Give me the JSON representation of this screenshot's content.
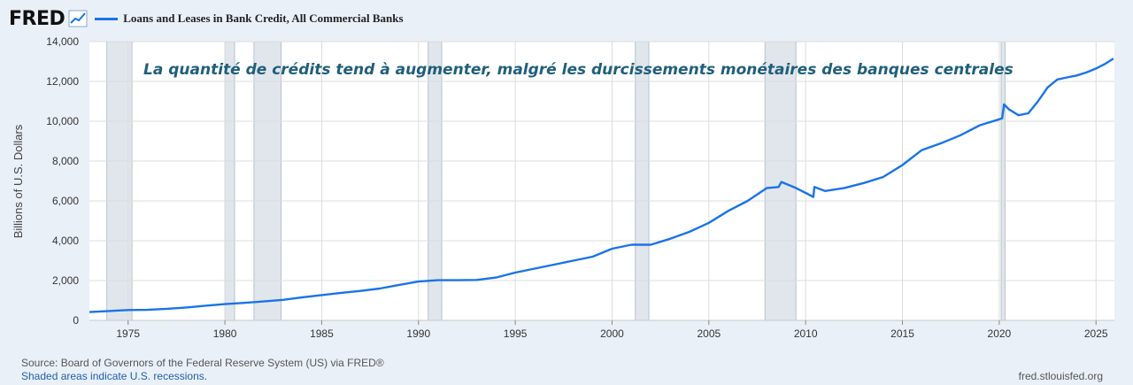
{
  "header": {
    "logo": "FRED",
    "legend_label": "Loans and Leases in Bank Credit, All Commercial Banks"
  },
  "footer": {
    "source": "Source: Board of Governors of the Federal Reserve System (US) via FRED®",
    "note": "Shaded areas indicate U.S. recessions.",
    "site": "fred.stlouisfed.org"
  },
  "colors": {
    "series": "#1a73e8",
    "annotation": "#1f5f7a",
    "recession": "#e1e6ec",
    "background": "#eaf0f8",
    "plot_bg": "#ffffff"
  },
  "chart_data": {
    "type": "line",
    "annotation": "La quantité de crédits tend à augmenter, malgré les durcissements monétaires des banques centrales",
    "ylabel": "Billions of U.S. Dollars",
    "xlabel": "",
    "xlim": [
      1973.0,
      2025.95
    ],
    "ylim": [
      0,
      14000
    ],
    "y_ticks": [
      0,
      2000,
      4000,
      6000,
      8000,
      10000,
      12000,
      14000
    ],
    "y_tick_labels": [
      "0",
      "2,000",
      "4,000",
      "6,000",
      "8,000",
      "10,000",
      "12,000",
      "14,000"
    ],
    "x_ticks": [
      1975,
      1980,
      1985,
      1990,
      1995,
      2000,
      2005,
      2010,
      2015,
      2020,
      2025
    ],
    "x_tick_labels": [
      "1975",
      "1980",
      "1985",
      "1990",
      "1995",
      "2000",
      "2005",
      "2010",
      "2015",
      "2020",
      "2025"
    ],
    "grid": true,
    "legend": "top-left",
    "recessions": [
      [
        1973.9,
        1975.2
      ],
      [
        1980.0,
        1980.5
      ],
      [
        1981.5,
        1982.9
      ],
      [
        1990.5,
        1991.2
      ],
      [
        2001.2,
        2001.9
      ],
      [
        2007.9,
        2009.5
      ],
      [
        2020.1,
        2020.3
      ]
    ],
    "series": [
      {
        "name": "Loans and Leases in Bank Credit, All Commercial Banks",
        "x": [
          1973.0,
          1974.0,
          1975.0,
          1976.0,
          1977.0,
          1978.0,
          1979.0,
          1980.0,
          1981.0,
          1982.0,
          1983.0,
          1984.0,
          1985.0,
          1986.0,
          1987.0,
          1988.0,
          1989.0,
          1990.0,
          1991.0,
          1992.0,
          1993.0,
          1994.0,
          1995.0,
          1996.0,
          1997.0,
          1998.0,
          1999.0,
          2000.0,
          2001.0,
          2002.0,
          2003.0,
          2004.0,
          2005.0,
          2006.0,
          2007.0,
          2008.0,
          2008.6,
          2008.75,
          2009.0,
          2009.5,
          2010.0,
          2010.4,
          2010.45,
          2011.0,
          2012.0,
          2013.0,
          2014.0,
          2015.0,
          2016.0,
          2017.0,
          2018.0,
          2019.0,
          2020.0,
          2020.15,
          2020.25,
          2020.5,
          2021.0,
          2021.5,
          2022.0,
          2022.5,
          2023.0,
          2023.5,
          2024.0,
          2024.5,
          2025.0,
          2025.5,
          2025.9
        ],
        "values": [
          420,
          470,
          520,
          530,
          580,
          650,
          740,
          820,
          880,
          950,
          1030,
          1160,
          1270,
          1380,
          1480,
          1600,
          1780,
          1950,
          2020,
          2020,
          2030,
          2150,
          2400,
          2600,
          2800,
          3000,
          3200,
          3600,
          3800,
          3800,
          4100,
          4450,
          4900,
          5500,
          6000,
          6650,
          6700,
          6950,
          6850,
          6650,
          6400,
          6200,
          6700,
          6500,
          6650,
          6900,
          7200,
          7800,
          8550,
          8900,
          9300,
          9800,
          10100,
          10150,
          10850,
          10600,
          10300,
          10400,
          11000,
          11700,
          12100,
          12200,
          12300,
          12450,
          12650,
          12900,
          13150
        ]
      }
    ]
  }
}
